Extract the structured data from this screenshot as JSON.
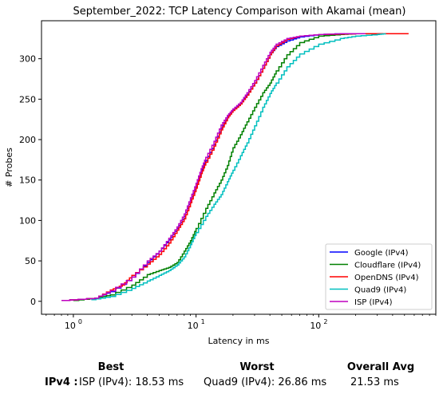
{
  "chart_data": {
    "type": "line",
    "title": "September_2022: TCP Latency Comparison with Akamai (mean)",
    "xlabel": "Latency in ms",
    "ylabel": "# Probes",
    "xscale": "log",
    "xlim": [
      0.55,
      900
    ],
    "ylim": [
      -16,
      347
    ],
    "x_ticks": [
      {
        "value": 1,
        "base": "10",
        "exp": "0"
      },
      {
        "value": 10,
        "base": "10",
        "exp": "1"
      },
      {
        "value": 100,
        "base": "10",
        "exp": "2"
      }
    ],
    "y_ticks": [
      0,
      50,
      100,
      150,
      200,
      250,
      300
    ],
    "grid": false,
    "legend_position": "lower-right",
    "series": [
      {
        "name": "Google (IPv4)",
        "color": "#0000ff",
        "points": [
          [
            0.8,
            1
          ],
          [
            1.5,
            4
          ],
          [
            2,
            12
          ],
          [
            3,
            30
          ],
          [
            4,
            48
          ],
          [
            5,
            62
          ],
          [
            6,
            76
          ],
          [
            7,
            90
          ],
          [
            8,
            105
          ],
          [
            9,
            125
          ],
          [
            10,
            142
          ],
          [
            11,
            160
          ],
          [
            12,
            174
          ],
          [
            14,
            194
          ],
          [
            16,
            214
          ],
          [
            18,
            228
          ],
          [
            20,
            237
          ],
          [
            23,
            245
          ],
          [
            26,
            256
          ],
          [
            30,
            270
          ],
          [
            35,
            288
          ],
          [
            40,
            305
          ],
          [
            45,
            315
          ],
          [
            55,
            322
          ],
          [
            70,
            327
          ],
          [
            100,
            330
          ],
          [
            150,
            331
          ],
          [
            230,
            331
          ]
        ]
      },
      {
        "name": "Cloudflare (IPv4)",
        "color": "#008000",
        "points": [
          [
            1,
            1
          ],
          [
            1.5,
            4
          ],
          [
            2,
            8
          ],
          [
            3,
            20
          ],
          [
            4,
            33
          ],
          [
            5,
            38
          ],
          [
            6,
            42
          ],
          [
            7,
            48
          ],
          [
            8,
            62
          ],
          [
            9,
            75
          ],
          [
            10,
            90
          ],
          [
            12,
            115
          ],
          [
            14,
            134
          ],
          [
            16,
            150
          ],
          [
            18,
            168
          ],
          [
            20,
            190
          ],
          [
            23,
            206
          ],
          [
            26,
            222
          ],
          [
            30,
            240
          ],
          [
            35,
            258
          ],
          [
            40,
            270
          ],
          [
            45,
            285
          ],
          [
            55,
            305
          ],
          [
            70,
            320
          ],
          [
            100,
            328
          ],
          [
            150,
            330
          ],
          [
            200,
            331
          ],
          [
            320,
            331
          ]
        ]
      },
      {
        "name": "OpenDNS (IPv4)",
        "color": "#ff0000",
        "points": [
          [
            0.8,
            1
          ],
          [
            1.5,
            4
          ],
          [
            2,
            14
          ],
          [
            2.5,
            20
          ],
          [
            3,
            32
          ],
          [
            4,
            46
          ],
          [
            5,
            58
          ],
          [
            6,
            72
          ],
          [
            7,
            88
          ],
          [
            8,
            102
          ],
          [
            9,
            122
          ],
          [
            10,
            140
          ],
          [
            11,
            158
          ],
          [
            12,
            172
          ],
          [
            14,
            192
          ],
          [
            16,
            212
          ],
          [
            18,
            227
          ],
          [
            20,
            236
          ],
          [
            23,
            244
          ],
          [
            26,
            255
          ],
          [
            30,
            270
          ],
          [
            35,
            288
          ],
          [
            40,
            305
          ],
          [
            45,
            316
          ],
          [
            55,
            324
          ],
          [
            70,
            328
          ],
          [
            100,
            330
          ],
          [
            200,
            331
          ],
          [
            540,
            331
          ]
        ]
      },
      {
        "name": "Quad9 (IPv4)",
        "color": "#00bfbf",
        "points": [
          [
            1.4,
            2
          ],
          [
            2,
            6
          ],
          [
            3,
            16
          ],
          [
            4,
            25
          ],
          [
            5,
            32
          ],
          [
            6,
            38
          ],
          [
            7,
            45
          ],
          [
            8,
            55
          ],
          [
            9,
            70
          ],
          [
            10,
            85
          ],
          [
            12,
            105
          ],
          [
            14,
            120
          ],
          [
            16,
            132
          ],
          [
            18,
            148
          ],
          [
            20,
            162
          ],
          [
            23,
            180
          ],
          [
            26,
            196
          ],
          [
            30,
            217
          ],
          [
            35,
            240
          ],
          [
            40,
            257
          ],
          [
            45,
            270
          ],
          [
            55,
            290
          ],
          [
            70,
            306
          ],
          [
            100,
            318
          ],
          [
            150,
            325
          ],
          [
            200,
            328
          ],
          [
            300,
            330
          ],
          [
            350,
            331
          ]
        ]
      },
      {
        "name": "ISP (IPv4)",
        "color": "#bf00bf",
        "points": [
          [
            0.8,
            1
          ],
          [
            1.5,
            4
          ],
          [
            2,
            13
          ],
          [
            3,
            30
          ],
          [
            4,
            50
          ],
          [
            5,
            62
          ],
          [
            6,
            78
          ],
          [
            7,
            92
          ],
          [
            8,
            108
          ],
          [
            9,
            128
          ],
          [
            10,
            146
          ],
          [
            11,
            164
          ],
          [
            12,
            178
          ],
          [
            14,
            198
          ],
          [
            16,
            218
          ],
          [
            18,
            230
          ],
          [
            20,
            238
          ],
          [
            23,
            246
          ],
          [
            26,
            258
          ],
          [
            30,
            273
          ],
          [
            35,
            292
          ],
          [
            40,
            308
          ],
          [
            45,
            318
          ],
          [
            55,
            325
          ],
          [
            70,
            328
          ],
          [
            100,
            330
          ],
          [
            150,
            331
          ],
          [
            240,
            331
          ]
        ]
      }
    ]
  },
  "summary": {
    "best_label": "Best",
    "worst_label": "Worst",
    "avg_label": "Overall Avg",
    "row_label": "IPv4 :",
    "best_value": "ISP (IPv4): 18.53 ms",
    "worst_value": "Quad9 (IPv4): 26.86 ms",
    "avg_value": "21.53 ms"
  }
}
